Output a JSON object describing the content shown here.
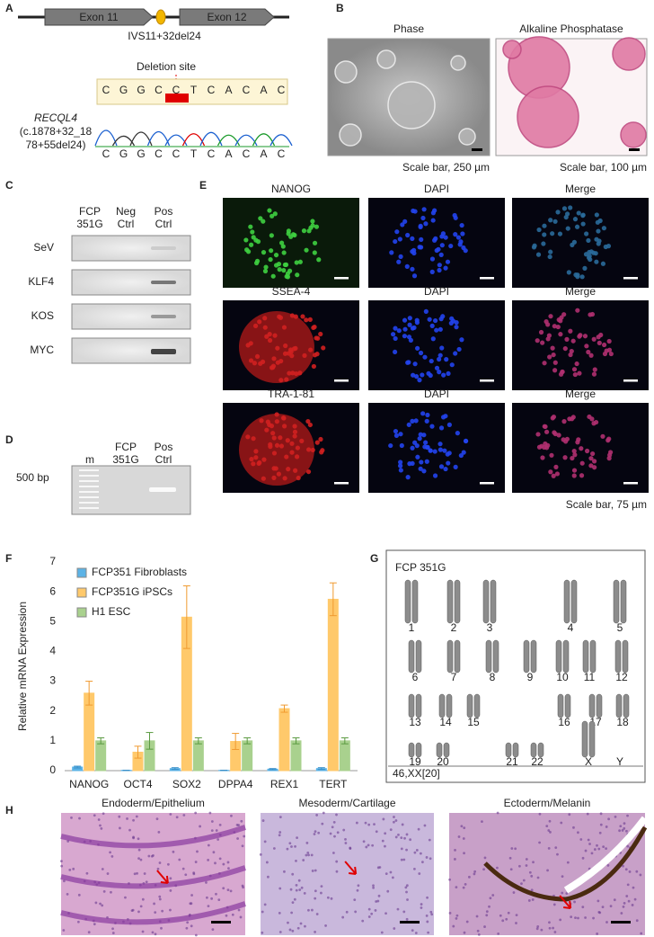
{
  "panel_labels": [
    "A",
    "B",
    "C",
    "D",
    "E",
    "F",
    "G",
    "H"
  ],
  "panel_a": {
    "exons": [
      "Exon 11",
      "Exon 12"
    ],
    "mutation": "IVS11+32del24",
    "deletion_label": "Deletion site",
    "sequence": [
      "C",
      "G",
      "G",
      "C",
      "C",
      "T",
      "C",
      "A",
      "C",
      "A",
      "C"
    ],
    "gene": "RECQL4",
    "variant_lines": [
      "(c.1878+32_18",
      "78+55del24)"
    ]
  },
  "panel_b": {
    "images": [
      {
        "title": "Phase",
        "scale": "Scale bar, 250 µm"
      },
      {
        "title": "Alkaline Phosphatase",
        "scale": "Scale bar, 100 µm"
      }
    ]
  },
  "panel_c": {
    "columns": [
      [
        "FCP",
        "351G"
      ],
      [
        "Neg",
        "Ctrl"
      ],
      [
        "Pos",
        "Ctrl"
      ]
    ],
    "rows": [
      "SeV",
      "KLF4",
      "KOS",
      "MYC"
    ]
  },
  "panel_d": {
    "columns": [
      [
        "m"
      ],
      [
        "FCP",
        "351G"
      ],
      [
        "Pos",
        "Ctrl"
      ]
    ],
    "size_label": "500 bp"
  },
  "panel_e": {
    "rows": [
      [
        "NANOG",
        "DAPI",
        "Merge"
      ],
      [
        "SSEA-4",
        "DAPI",
        "Merge"
      ],
      [
        "TRA-1-81",
        "DAPI",
        "Merge"
      ]
    ],
    "scale": "Scale bar, 75 µm"
  },
  "chart_data": {
    "type": "bar",
    "y_label": "Relative mRNA Expression",
    "categories": [
      "NANOG",
      "OCT4",
      "SOX2",
      "DPPA4",
      "REX1",
      "TERT"
    ],
    "series": [
      {
        "name": "FCP351 Fibroblasts",
        "color": "#5cb3e6",
        "values": [
          0.12,
          0.01,
          0.07,
          0.01,
          0.05,
          0.07
        ],
        "errors": [
          0.03,
          0.005,
          0.03,
          0.005,
          0.02,
          0.03
        ]
      },
      {
        "name": "FCP351G iPSCs",
        "color": "#ffc96b",
        "values": [
          2.6,
          0.62,
          5.15,
          0.98,
          2.08,
          5.75
        ],
        "errors": [
          0.4,
          0.2,
          1.05,
          0.27,
          0.12,
          0.55
        ]
      },
      {
        "name": "H1 ESC",
        "color": "#a9d18e",
        "values": [
          1,
          1,
          1,
          1,
          1,
          1
        ],
        "errors": [
          0.1,
          0.28,
          0.1,
          0.1,
          0.1,
          0.1
        ]
      }
    ],
    "ylim": [
      0,
      7
    ],
    "yticks": [
      0,
      1,
      2,
      3,
      4,
      5,
      6,
      7
    ],
    "legend": "top-left"
  },
  "panel_g": {
    "title": "FCP 351G",
    "chromosomes": [
      "1",
      "2",
      "3",
      "4",
      "5",
      "6",
      "7",
      "8",
      "9",
      "10",
      "11",
      "12",
      "13",
      "14",
      "15",
      "16",
      "17",
      "18",
      "19",
      "20",
      "21",
      "22",
      "X",
      "Y"
    ],
    "karyotype": "46,XX[20]"
  },
  "panel_h": {
    "titles": [
      "Endoderm/Epithelium",
      "Mesoderm/Cartilage",
      "Ectoderm/Melanin"
    ]
  }
}
